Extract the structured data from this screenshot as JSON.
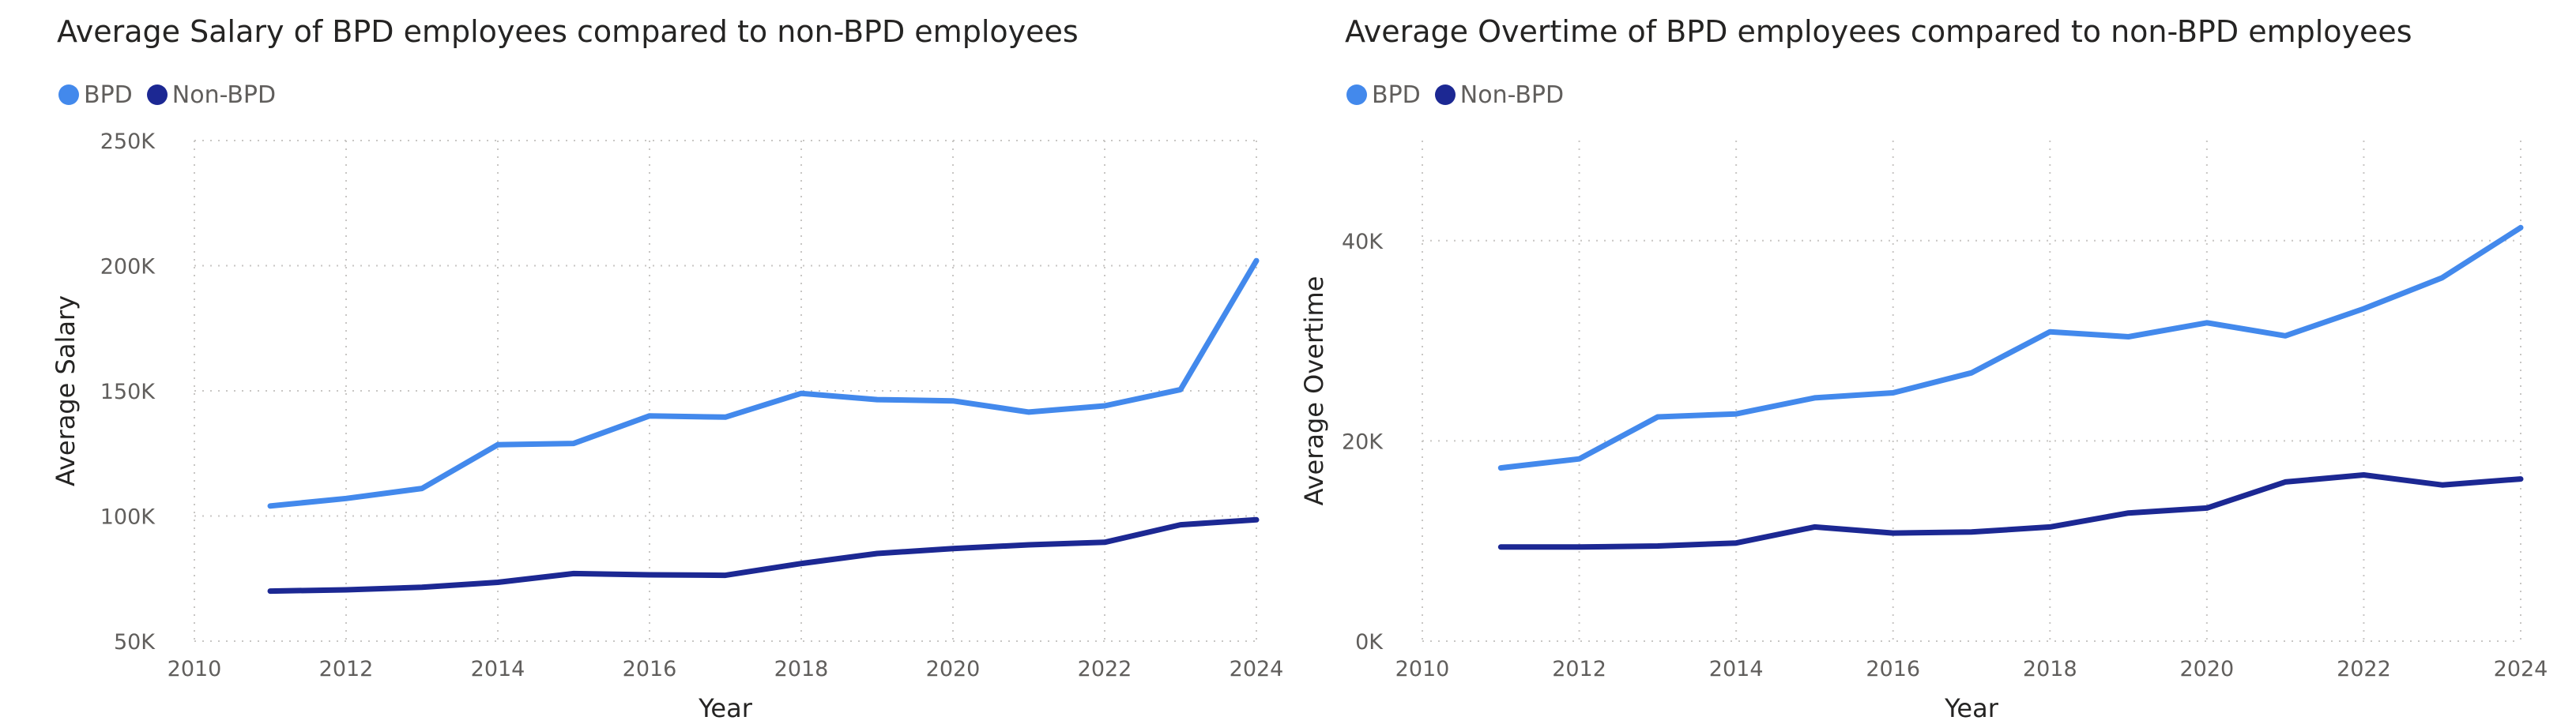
{
  "chart_data": [
    {
      "type": "line",
      "title": "Average Salary of BPD employees compared to non-BPD employees",
      "xlabel": "Year",
      "ylabel": "Average Salary",
      "xlim": [
        2010,
        2024
      ],
      "ylim": [
        50000,
        250000
      ],
      "x_ticks": [
        2010,
        2012,
        2014,
        2016,
        2018,
        2020,
        2022,
        2024
      ],
      "x_tick_labels": [
        "2010",
        "2012",
        "2014",
        "2016",
        "2018",
        "2020",
        "2022",
        "2024"
      ],
      "y_ticks": [
        50000,
        100000,
        150000,
        200000,
        250000
      ],
      "y_tick_labels": [
        "50K",
        "100K",
        "150K",
        "200K",
        "250K"
      ],
      "grid": true,
      "legend": "top-left",
      "x": [
        2011,
        2012,
        2013,
        2014,
        2015,
        2016,
        2017,
        2018,
        2019,
        2020,
        2021,
        2022,
        2023,
        2024
      ],
      "series": [
        {
          "name": "BPD",
          "color": "#4389ec",
          "values": [
            104000,
            107000,
            111000,
            128500,
            129000,
            140000,
            139500,
            149000,
            146500,
            146000,
            141500,
            144000,
            150500,
            202000
          ]
        },
        {
          "name": "Non-BPD",
          "color": "#1c2893",
          "values": [
            70000,
            70500,
            71500,
            73500,
            77000,
            76500,
            76300,
            81000,
            85000,
            87000,
            88500,
            89500,
            96500,
            98500
          ]
        }
      ]
    },
    {
      "type": "line",
      "title": "Average Overtime of BPD employees compared to non-BPD employees",
      "xlabel": "Year",
      "ylabel": "Average Overtime",
      "xlim": [
        2010,
        2024
      ],
      "ylim": [
        0,
        50000
      ],
      "x_ticks": [
        2010,
        2012,
        2014,
        2016,
        2018,
        2020,
        2022,
        2024
      ],
      "x_tick_labels": [
        "2010",
        "2012",
        "2014",
        "2016",
        "2018",
        "2020",
        "2022",
        "2024"
      ],
      "y_ticks": [
        0,
        20000,
        40000
      ],
      "y_tick_labels": [
        "0K",
        "20K",
        "40K"
      ],
      "grid": true,
      "legend": "top-left",
      "x": [
        2011,
        2012,
        2013,
        2014,
        2015,
        2016,
        2017,
        2018,
        2019,
        2020,
        2021,
        2022,
        2023,
        2024
      ],
      "series": [
        {
          "name": "BPD",
          "color": "#4389ec",
          "values": [
            17300,
            18200,
            22400,
            22700,
            24300,
            24800,
            26800,
            30900,
            30400,
            31800,
            30500,
            33200,
            36300,
            41300
          ]
        },
        {
          "name": "Non-BPD",
          "color": "#1c2893",
          "values": [
            9400,
            9400,
            9500,
            9800,
            11400,
            10800,
            10900,
            11400,
            12800,
            13300,
            15900,
            16600,
            15600,
            16200
          ]
        }
      ]
    }
  ]
}
